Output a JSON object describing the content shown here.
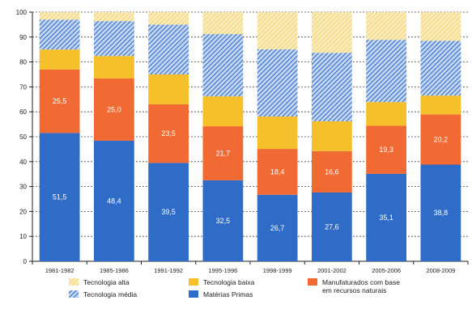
{
  "chart_data": {
    "type": "bar",
    "stacked": true,
    "categories": [
      "1981-1982",
      "1985-1986",
      "1991-1992",
      "1995-1996",
      "1998-1999",
      "2001-2002",
      "2005-2006",
      "2008-2009"
    ],
    "ylim": [
      0,
      100
    ],
    "yticks": [
      0,
      10,
      20,
      30,
      40,
      50,
      60,
      70,
      80,
      90,
      100
    ],
    "grid": true,
    "legend_position": "bottom",
    "series": [
      {
        "name": "Matérias Primas",
        "color": "#2f6cc7",
        "pattern": "solid",
        "values": [
          51.5,
          48.4,
          39.5,
          32.5,
          26.7,
          27.6,
          35.1,
          38.8
        ],
        "labels": [
          "51,5",
          "48,4",
          "39,5",
          "32,5",
          "26,7",
          "27,6",
          "35,1",
          "38,8"
        ]
      },
      {
        "name": "Manufaturados com base em recursos naturais",
        "name_lines": [
          "Manufaturados com base",
          "em recursos naturais"
        ],
        "color": "#f26a33",
        "pattern": "solid",
        "values": [
          25.5,
          25.0,
          23.5,
          21.7,
          18.4,
          16.6,
          19.3,
          20.2
        ],
        "labels": [
          "25,5",
          "25,0",
          "23,5",
          "21,7",
          "18,4",
          "16,6",
          "19,3",
          "20,2"
        ]
      },
      {
        "name": "Tecnologia baixa",
        "color": "#f5c02a",
        "pattern": "solid",
        "values": [
          8.0,
          9.0,
          12.0,
          12.0,
          13.0,
          12.0,
          9.5,
          7.5
        ]
      },
      {
        "name": "Tecnologia média",
        "color": "#2f6cc7",
        "pattern": "hatch",
        "values": [
          12.0,
          14.0,
          20.0,
          25.0,
          27.0,
          27.5,
          25.0,
          22.0
        ]
      },
      {
        "name": "Tecnologia alta",
        "color": "#f5d36a",
        "pattern": "dots",
        "values": [
          3.0,
          3.6,
          5.0,
          8.8,
          14.9,
          16.3,
          11.1,
          11.5
        ]
      }
    ],
    "legend_order": [
      [
        "Tecnologia alta",
        "Tecnologia baixa",
        "Manufaturados com base em recursos naturais"
      ],
      [
        "Tecnologia média",
        "Matérias Primas"
      ]
    ]
  }
}
